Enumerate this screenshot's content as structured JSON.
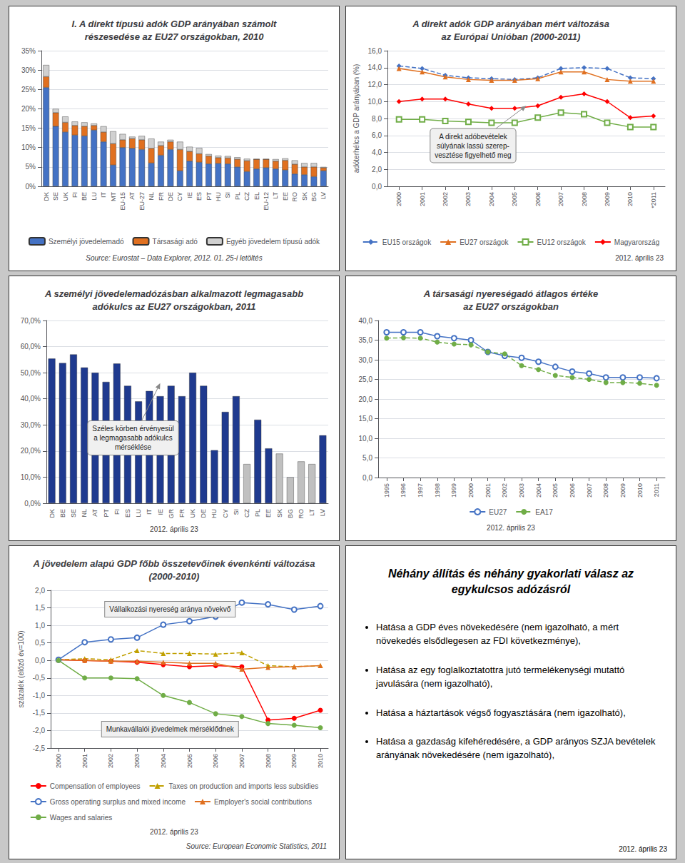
{
  "chart_data": [
    {
      "type": "bar",
      "title": "I. A direkt típusú adók GDP arányában számolt\nrészesedése az EU27 országokban, 2010",
      "categories": [
        "DK",
        "SE",
        "UK",
        "FI",
        "BE",
        "LU",
        "IT",
        "MT",
        "EU-15",
        "AT",
        "EU-27",
        "NL",
        "FR",
        "DE",
        "CY",
        "IE",
        "ES",
        "PT",
        "HU",
        "SI",
        "PL",
        "CZ",
        "EL",
        "EU-12",
        "LT",
        "EE",
        "RO",
        "SK",
        "BG",
        "LV"
      ],
      "series": [
        {
          "name": "Személyi jövedelemadó",
          "color": "#4472C4",
          "values": [
            25.5,
            15.5,
            14.0,
            13.2,
            13.0,
            14.5,
            11.5,
            5.5,
            10.0,
            9.8,
            9.5,
            6.0,
            8.0,
            9.5,
            4.0,
            6.5,
            6.2,
            5.8,
            5.9,
            5.8,
            5.0,
            3.8,
            4.5,
            4.8,
            4.5,
            4.2,
            3.2,
            3.0,
            2.5,
            4.0
          ]
        },
        {
          "name": "Társasági adó",
          "color": "#E07020",
          "values": [
            2.8,
            3.5,
            2.5,
            2.5,
            2.5,
            1.2,
            2.5,
            5.5,
            2.0,
            2.5,
            2.5,
            3.8,
            2.5,
            2.0,
            5.5,
            2.5,
            2.2,
            2.0,
            1.5,
            1.5,
            2.0,
            2.8,
            2.5,
            2.2,
            2.0,
            2.5,
            2.5,
            2.0,
            2.5,
            0.8
          ]
        },
        {
          "name": "Egyéb jövedelem típusú adók",
          "color": "#D0D0D0",
          "values": [
            3.0,
            1.0,
            1.5,
            1.0,
            1.0,
            0.5,
            1.5,
            3.2,
            1.5,
            0.5,
            1.0,
            2.5,
            1.0,
            0.5,
            2.0,
            1.2,
            1.5,
            0.5,
            0.5,
            0.5,
            0.5,
            0.5,
            0.0,
            0.0,
            0.5,
            0.5,
            1.0,
            1.0,
            1.0,
            0.2
          ]
        }
      ],
      "stacked": true,
      "ylim": [
        0,
        35
      ],
      "yticks": [
        {
          "value": 0,
          "label": "0%"
        },
        {
          "value": 5,
          "label": "5%"
        },
        {
          "value": 10,
          "label": "10%"
        },
        {
          "value": 15,
          "label": "15%"
        },
        {
          "value": 20,
          "label": "20%"
        },
        {
          "value": 25,
          "label": "25%"
        },
        {
          "value": 30,
          "label": "30%"
        },
        {
          "value": 35,
          "label": "35%"
        }
      ],
      "grid": true,
      "legend": "bottom",
      "source": [
        "Source: Eurostat – Data Explorer, 2012. 01. 25-i letöltés"
      ]
    },
    {
      "type": "line",
      "title": "A direkt adók GDP arányában mért változása\naz Európai Unióban (2000-2011)",
      "x": [
        2000,
        2001,
        2002,
        2003,
        2004,
        2005,
        2006,
        2007,
        2008,
        2009,
        2010,
        2011
      ],
      "series": [
        {
          "name": "EU15 országok",
          "color": "#4472C4",
          "marker": "diamond",
          "line_style": "dashed",
          "values": [
            14.2,
            13.9,
            13.1,
            12.8,
            12.7,
            12.6,
            12.8,
            13.9,
            14.0,
            13.9,
            12.8,
            12.7
          ]
        },
        {
          "name": "EU27 országok",
          "color": "#E07020",
          "marker": "triangle",
          "line_style": "solid",
          "values": [
            13.9,
            13.5,
            12.9,
            12.6,
            12.5,
            12.5,
            12.7,
            13.5,
            13.5,
            12.6,
            12.4,
            12.4
          ]
        },
        {
          "name": "EU12 országok",
          "color": "#70AD47",
          "marker": "square_open",
          "line_style": "solid",
          "values": [
            7.9,
            7.9,
            7.7,
            7.6,
            7.5,
            7.5,
            8.1,
            8.7,
            8.5,
            7.5,
            7.0,
            7.0
          ]
        },
        {
          "name": "Magyarország",
          "color": "#FF0000",
          "marker": "diamond",
          "line_style": "solid",
          "values": [
            10.0,
            10.3,
            10.3,
            9.7,
            9.2,
            9.2,
            9.5,
            10.5,
            10.9,
            10.0,
            8.1,
            8.3
          ]
        }
      ],
      "xlim": [
        1999.5,
        2011.5
      ],
      "xticks": [
        2000,
        2001,
        2002,
        2003,
        2004,
        2005,
        2006,
        2007,
        2008,
        2009,
        2010,
        {
          "value": 2011,
          "label": "*2011"
        }
      ],
      "ylim": [
        0,
        16
      ],
      "yticks": [
        {
          "value": 0,
          "label": "0,0"
        },
        {
          "value": 2,
          "label": "2,0"
        },
        {
          "value": 4,
          "label": "4,0"
        },
        {
          "value": 6,
          "label": "6,0"
        },
        {
          "value": 8,
          "label": "8,0"
        },
        {
          "value": 10,
          "label": "10,0"
        },
        {
          "value": 12,
          "label": "12,0"
        },
        {
          "value": 14,
          "label": "14,0"
        },
        {
          "value": 16,
          "label": "16,0"
        }
      ],
      "ylabel": "adóterhélcs a GDP arányában (%)",
      "grid": true,
      "legend": "bottom",
      "annotations": [
        "A direkt adóbevételek\nsúlyának lassú szerep-\nvesztése figyelhető meg"
      ],
      "source": [
        "2012. április 23"
      ]
    },
    {
      "type": "bar",
      "title": "A személyi jövedelemadózásban alkalmazott legmagasabb\nadókulcs az EU27 országokban, 2011",
      "categories": [
        "DK",
        "BE",
        "SE",
        "NL",
        "AT",
        "PT",
        "FI",
        "ES",
        "LU",
        "IT",
        "IE",
        "GR",
        "FR",
        "UK",
        "DE",
        "HU",
        "CY",
        "SI",
        "CZ",
        "PL",
        "EE",
        "SK",
        "BG",
        "RO",
        "LT",
        "LV"
      ],
      "values": [
        55.4,
        53.7,
        57.0,
        52.0,
        50.0,
        46.5,
        53.5,
        45.0,
        39.0,
        43.0,
        41.0,
        45.0,
        41.0,
        50.0,
        45.0,
        20.32,
        35.0,
        41.0,
        15.0,
        32.0,
        21.0,
        19.0,
        10.0,
        16.0,
        15.0,
        26.0
      ],
      "colors": [
        "#1F3A8F",
        "#1F3A8F",
        "#1F3A8F",
        "#1F3A8F",
        "#1F3A8F",
        "#1F3A8F",
        "#1F3A8F",
        "#1F3A8F",
        "#1F3A8F",
        "#1F3A8F",
        "#1F3A8F",
        "#1F3A8F",
        "#1F3A8F",
        "#1F3A8F",
        "#1F3A8F",
        "#1F3A8F",
        "#1F3A8F",
        "#1F3A8F",
        "#C0C0C0",
        "#1F3A8F",
        "#1F3A8F",
        "#C0C0C0",
        "#C0C0C0",
        "#C0C0C0",
        "#C0C0C0",
        "#1F3A8F"
      ],
      "ylim": [
        0,
        70
      ],
      "yticks": [
        {
          "value": 0,
          "label": "0,0%"
        },
        {
          "value": 10,
          "label": "10,0%"
        },
        {
          "value": 20,
          "label": "20,0%"
        },
        {
          "value": 30,
          "label": "30,0%"
        },
        {
          "value": 40,
          "label": "40,0%"
        },
        {
          "value": 50,
          "label": "50,0%"
        },
        {
          "value": 60,
          "label": "60,0%"
        },
        {
          "value": 70,
          "label": "70,0%"
        }
      ],
      "grid": true,
      "annotations": [
        "Széles körben érvényesül\na legmagasabb adókulcs\nmérséklése"
      ],
      "source": [
        "2012. április 23"
      ]
    },
    {
      "type": "line",
      "title": "A társasági nyereségadó átlagos értéke\naz EU27 országokban",
      "x": [
        1995,
        1996,
        1997,
        1998,
        1999,
        2000,
        2001,
        2002,
        2003,
        2004,
        2005,
        2006,
        2007,
        2008,
        2009,
        2010,
        2011
      ],
      "series": [
        {
          "name": "EU27",
          "color": "#4472C4",
          "marker": "circle_open",
          "line_style": "solid",
          "values": [
            37.0,
            37.0,
            37.0,
            36.0,
            35.5,
            35.0,
            32.0,
            31.0,
            30.5,
            29.5,
            28.2,
            27.0,
            26.5,
            25.5,
            25.5,
            25.5,
            25.3
          ]
        },
        {
          "name": "EA17",
          "color": "#70AD47",
          "marker": "circle",
          "line_style": "dashed",
          "values": [
            35.5,
            35.6,
            35.5,
            34.5,
            34.0,
            33.8,
            32.0,
            31.5,
            28.5,
            27.5,
            26.0,
            25.5,
            25.0,
            24.2,
            24.2,
            24.0,
            23.5
          ]
        }
      ],
      "xlim": [
        1994.5,
        2011.5
      ],
      "xticks": [
        1995,
        1996,
        1997,
        1998,
        1999,
        2000,
        2001,
        2002,
        2003,
        2004,
        2005,
        2006,
        2007,
        2008,
        2009,
        2010,
        2011
      ],
      "ylim": [
        0,
        40
      ],
      "yticks": [
        {
          "value": 0,
          "label": "0,0"
        },
        {
          "value": 5,
          "label": "5,0"
        },
        {
          "value": 10,
          "label": "10,0"
        },
        {
          "value": 15,
          "label": "15,0"
        },
        {
          "value": 20,
          "label": "20,0"
        },
        {
          "value": 25,
          "label": "25,0"
        },
        {
          "value": 30,
          "label": "30,0"
        },
        {
          "value": 35,
          "label": "35,0"
        },
        {
          "value": 40,
          "label": "40,0"
        }
      ],
      "grid": true,
      "legend": "bottom",
      "source": [
        "2012. április 23"
      ]
    },
    {
      "type": "line",
      "title": "A jövedelem alapú GDP főbb összetevőinek évenkénti változása\n(2000-2010)",
      "x": [
        2000,
        2001,
        2002,
        2003,
        2004,
        2005,
        2006,
        2007,
        2008,
        2009,
        2010
      ],
      "series": [
        {
          "name": "Compensation of employees",
          "color": "#FF0000",
          "marker": "circle",
          "line_style": "solid",
          "values": [
            0.02,
            0.0,
            -0.02,
            -0.05,
            -0.12,
            -0.18,
            -0.15,
            -0.18,
            -1.7,
            -1.65,
            -1.42
          ]
        },
        {
          "name": "Taxes on production and imports less subsidies",
          "color": "#C0A000",
          "marker": "triangle",
          "line_style": "dashed",
          "values": [
            0.02,
            0.05,
            0.02,
            0.28,
            0.2,
            0.2,
            0.18,
            0.22,
            -0.15,
            -0.18,
            -0.15
          ]
        },
        {
          "name": "Gross operating surplus and mixed income",
          "color": "#4472C4",
          "marker": "circle_open",
          "line_style": "solid",
          "values": [
            0.02,
            0.52,
            0.6,
            0.65,
            1.02,
            1.12,
            1.25,
            1.65,
            1.6,
            1.45,
            1.55
          ]
        },
        {
          "name": "Employer's social contributions",
          "color": "#E07020",
          "marker": "triangle",
          "line_style": "solid",
          "values": [
            0.02,
            0.0,
            -0.02,
            -0.02,
            -0.05,
            -0.08,
            -0.08,
            -0.25,
            -0.2,
            -0.18,
            -0.15
          ]
        },
        {
          "name": "Wages and salaries",
          "color": "#70AD47",
          "marker": "circle",
          "line_style": "solid",
          "values": [
            0.0,
            -0.5,
            -0.5,
            -0.52,
            -1.0,
            -1.2,
            -1.52,
            -1.6,
            -1.8,
            -1.85,
            -1.92
          ]
        }
      ],
      "xlim": [
        1999.7,
        2010.3
      ],
      "xticks": [
        2000,
        2001,
        2002,
        2003,
        2004,
        2005,
        2006,
        2007,
        2008,
        2009,
        2010
      ],
      "ylim": [
        -2.5,
        2.0
      ],
      "yticks": [
        {
          "value": -2.5,
          "label": "-2,5"
        },
        {
          "value": -2.0,
          "label": "-2,0"
        },
        {
          "value": -1.5,
          "label": "-1,5"
        },
        {
          "value": -1.0,
          "label": "-1,0"
        },
        {
          "value": -0.5,
          "label": "-0,5"
        },
        {
          "value": 0.0,
          "label": "0,0"
        },
        {
          "value": 0.5,
          "label": "0,5"
        },
        {
          "value": 1.0,
          "label": "1,0"
        },
        {
          "value": 1.5,
          "label": "1,5"
        },
        {
          "value": 2.0,
          "label": "2,0"
        }
      ],
      "ylabel": "százalék (előző év=100)",
      "grid": true,
      "legend": "bottom",
      "annotations": [
        "Vállalkozási nyereség aránya növekvő",
        "Munkavállalói jövedelmek mérséklődnek"
      ],
      "source": [
        "2012. április 23",
        "Source: European Economic Statistics, 2011"
      ]
    },
    {
      "type": "text",
      "title": "Néhány állítás és néhány gyakorlati válasz az\negykulcsos adózásról",
      "annotations": [
        "Hatása a GDP éves növekedésére (nem igazolható, a mért növekedés elsődlegesen az FDI következménye),",
        "Hatása az egy foglalkoztatottra jutó termelékenységi mutattó javulására (nem igazolható),",
        "Hatása a háztartások végső fogyasztására (nem igazolható),",
        "Hatása a gazdaság kifehéredésére, a GDP arányos SZJA bevételek arányának növekedésére (nem igazolható),"
      ],
      "source": [
        "2012. április 23"
      ]
    }
  ]
}
